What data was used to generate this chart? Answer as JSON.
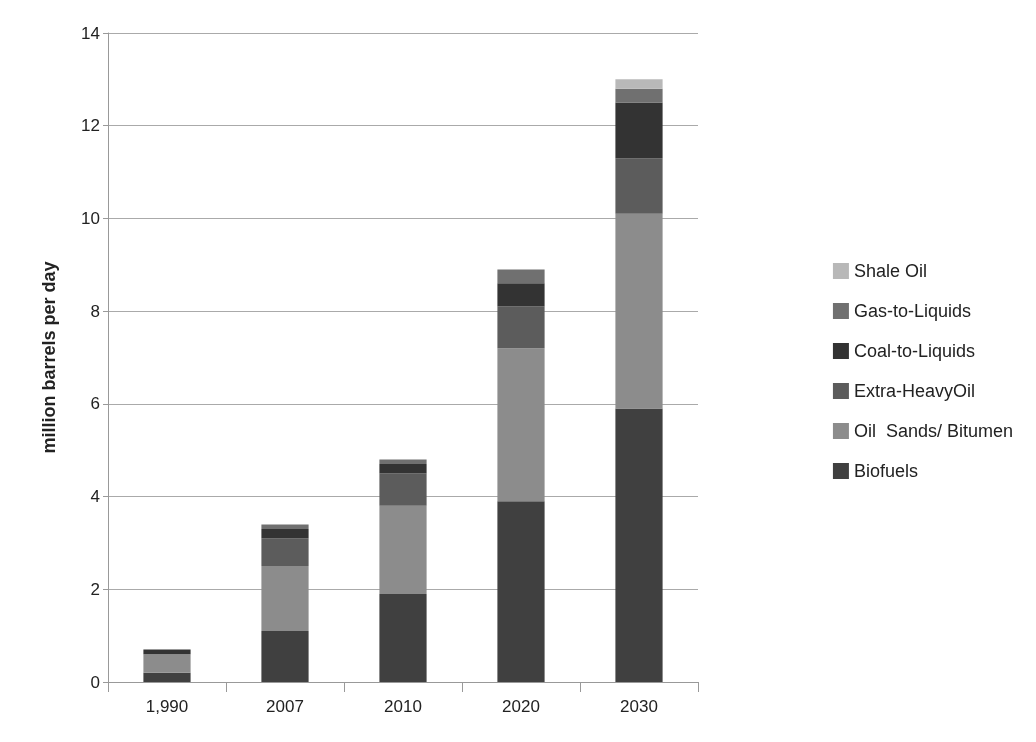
{
  "chart_data": {
    "type": "bar",
    "stacked": true,
    "ylabel": "million barrels per day",
    "categories": [
      "1,990",
      "2007",
      "2010",
      "2020",
      "2030"
    ],
    "series": [
      {
        "name": "Biofuels",
        "color": "#404040",
        "values": [
          0.2,
          1.1,
          1.9,
          3.9,
          5.9
        ]
      },
      {
        "name": "Oil  Sands/ Bitumen",
        "color": "#8c8c8c",
        "values": [
          0.4,
          1.4,
          1.9,
          3.3,
          4.2
        ]
      },
      {
        "name": "Extra-HeavyOil",
        "color": "#5c5c5c",
        "values": [
          0,
          0.6,
          0.7,
          0.9,
          1.2
        ]
      },
      {
        "name": "Coal-to-Liquids",
        "color": "#333333",
        "values": [
          0.1,
          0.2,
          0.2,
          0.5,
          1.2
        ]
      },
      {
        "name": "Gas-to-Liquids",
        "color": "#707070",
        "values": [
          0,
          0.1,
          0.1,
          0.3,
          0.3
        ]
      },
      {
        "name": "Shale Oil",
        "color": "#b8b8b8",
        "values": [
          0,
          0,
          0,
          0,
          0.2
        ]
      }
    ],
    "ylim": [
      0,
      14
    ],
    "yticks": [
      0,
      2,
      4,
      6,
      8,
      10,
      12,
      14
    ],
    "grid": "y",
    "legend": "right"
  }
}
